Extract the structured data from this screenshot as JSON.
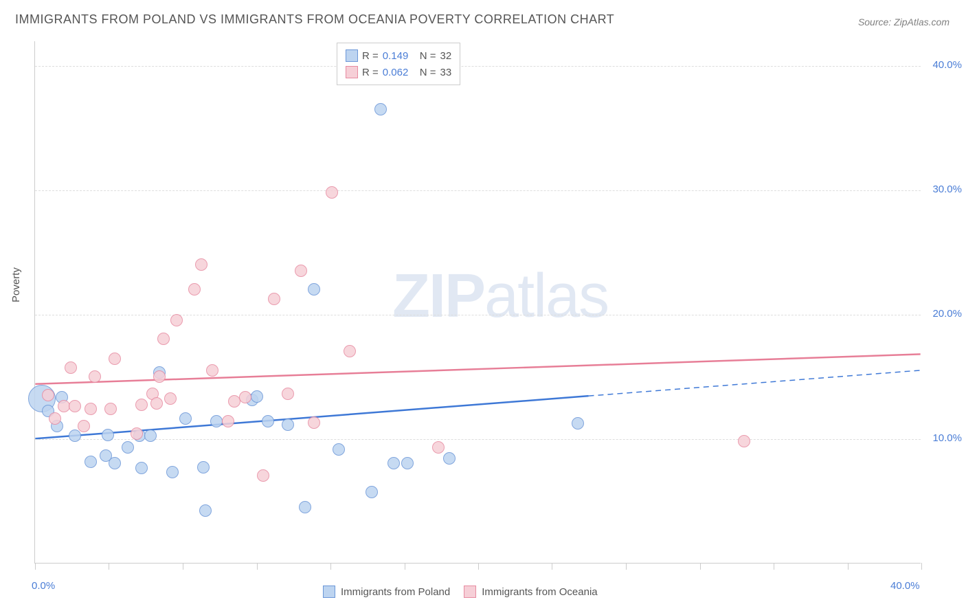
{
  "title": "IMMIGRANTS FROM POLAND VS IMMIGRANTS FROM OCEANIA POVERTY CORRELATION CHART",
  "source": "Source: ZipAtlas.com",
  "watermark": {
    "prefix": "ZIP",
    "suffix": "atlas"
  },
  "chart": {
    "type": "scatter",
    "xlim": [
      0,
      40
    ],
    "ylim": [
      0,
      42
    ],
    "x_ticks": [
      0,
      3.33,
      6.67,
      10,
      13.33,
      16.67,
      20,
      23.33,
      26.67,
      30,
      33.33,
      36.67,
      40
    ],
    "y_grid": [
      10,
      20,
      30,
      40
    ],
    "x_labels": [
      {
        "v": 0,
        "t": "0.0%"
      },
      {
        "v": 40,
        "t": "40.0%"
      }
    ],
    "y_labels": [
      {
        "v": 10,
        "t": "10.0%"
      },
      {
        "v": 20,
        "t": "20.0%"
      },
      {
        "v": 30,
        "t": "30.0%"
      },
      {
        "v": 40,
        "t": "40.0%"
      }
    ],
    "y_axis_title": "Poverty",
    "background_color": "#ffffff",
    "grid_color": "#dddddd",
    "point_radius_default": 9,
    "series": [
      {
        "id": "poland",
        "label": "Immigrants from Poland",
        "fill": "#bdd4f0",
        "stroke": "#6a96d8",
        "line_color": "#3e78d6",
        "R": "0.149",
        "N": "32",
        "trend": {
          "y_at_x0": 10.0,
          "y_at_x40": 15.5,
          "solid_until_x": 25.0
        },
        "points": [
          {
            "x": 0.3,
            "y": 13.2,
            "r": 20
          },
          {
            "x": 0.6,
            "y": 12.2
          },
          {
            "x": 1.0,
            "y": 11.0
          },
          {
            "x": 1.8,
            "y": 10.2
          },
          {
            "x": 1.2,
            "y": 13.3
          },
          {
            "x": 2.5,
            "y": 8.1
          },
          {
            "x": 3.2,
            "y": 8.6
          },
          {
            "x": 3.3,
            "y": 10.3
          },
          {
            "x": 3.6,
            "y": 8.0
          },
          {
            "x": 4.2,
            "y": 9.3
          },
          {
            "x": 4.8,
            "y": 7.6
          },
          {
            "x": 4.7,
            "y": 10.2
          },
          {
            "x": 5.2,
            "y": 10.2
          },
          {
            "x": 5.6,
            "y": 15.3
          },
          {
            "x": 6.2,
            "y": 7.3
          },
          {
            "x": 6.8,
            "y": 11.6
          },
          {
            "x": 7.7,
            "y": 4.2
          },
          {
            "x": 7.6,
            "y": 7.7
          },
          {
            "x": 8.2,
            "y": 11.4
          },
          {
            "x": 9.8,
            "y": 13.1
          },
          {
            "x": 10.0,
            "y": 13.4
          },
          {
            "x": 10.5,
            "y": 11.4
          },
          {
            "x": 11.4,
            "y": 11.1
          },
          {
            "x": 12.2,
            "y": 4.5
          },
          {
            "x": 12.6,
            "y": 22.0
          },
          {
            "x": 13.7,
            "y": 9.1
          },
          {
            "x": 15.2,
            "y": 5.7
          },
          {
            "x": 15.6,
            "y": 36.5
          },
          {
            "x": 16.2,
            "y": 8.0
          },
          {
            "x": 16.8,
            "y": 8.0
          },
          {
            "x": 18.7,
            "y": 8.4
          },
          {
            "x": 24.5,
            "y": 11.2
          }
        ]
      },
      {
        "id": "oceania",
        "label": "Immigrants from Oceania",
        "fill": "#f6cfd7",
        "stroke": "#e78aa0",
        "line_color": "#e77e97",
        "R": "0.062",
        "N": "33",
        "trend": {
          "y_at_x0": 14.4,
          "y_at_x40": 16.8,
          "solid_until_x": 40.0
        },
        "points": [
          {
            "x": 0.6,
            "y": 13.5
          },
          {
            "x": 0.9,
            "y": 11.6
          },
          {
            "x": 1.3,
            "y": 12.6
          },
          {
            "x": 1.8,
            "y": 12.6
          },
          {
            "x": 1.6,
            "y": 15.7
          },
          {
            "x": 2.2,
            "y": 11.0
          },
          {
            "x": 2.5,
            "y": 12.4
          },
          {
            "x": 2.7,
            "y": 15.0
          },
          {
            "x": 3.4,
            "y": 12.4
          },
          {
            "x": 3.6,
            "y": 16.4
          },
          {
            "x": 4.6,
            "y": 10.4
          },
          {
            "x": 4.8,
            "y": 12.7
          },
          {
            "x": 5.3,
            "y": 13.6
          },
          {
            "x": 5.5,
            "y": 12.8
          },
          {
            "x": 5.6,
            "y": 15.0
          },
          {
            "x": 6.1,
            "y": 13.2
          },
          {
            "x": 5.8,
            "y": 18.0
          },
          {
            "x": 6.4,
            "y": 19.5
          },
          {
            "x": 7.2,
            "y": 22.0
          },
          {
            "x": 7.5,
            "y": 24.0
          },
          {
            "x": 8.0,
            "y": 15.5
          },
          {
            "x": 8.7,
            "y": 11.4
          },
          {
            "x": 9.0,
            "y": 13.0
          },
          {
            "x": 9.5,
            "y": 13.3
          },
          {
            "x": 10.3,
            "y": 7.0
          },
          {
            "x": 10.8,
            "y": 21.2
          },
          {
            "x": 11.4,
            "y": 13.6
          },
          {
            "x": 12.0,
            "y": 23.5
          },
          {
            "x": 12.6,
            "y": 11.3
          },
          {
            "x": 13.4,
            "y": 29.8
          },
          {
            "x": 14.2,
            "y": 17.0
          },
          {
            "x": 18.2,
            "y": 9.3
          },
          {
            "x": 32.0,
            "y": 9.8
          }
        ]
      }
    ]
  },
  "stats_box": {
    "rows": [
      {
        "series": "poland",
        "R_label": "R =",
        "N_label": "N ="
      },
      {
        "series": "oceania",
        "R_label": "R =",
        "N_label": "N ="
      }
    ]
  }
}
